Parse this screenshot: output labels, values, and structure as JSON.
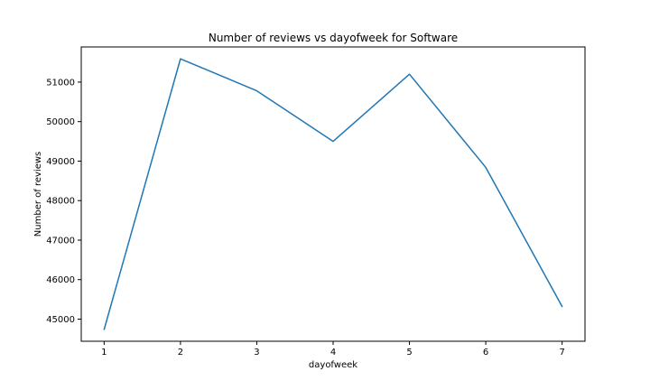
{
  "chart_data": {
    "type": "line",
    "title": "Number of reviews vs dayofweek for Software",
    "xlabel": "dayofweek",
    "ylabel": "Number of reviews",
    "x": [
      1,
      2,
      3,
      4,
      5,
      6,
      7
    ],
    "series": [
      {
        "values": [
          44740,
          51590,
          50780,
          49500,
          51200,
          48840,
          45320
        ],
        "color": "#1f77b4"
      }
    ],
    "xlim": [
      0.7,
      7.3
    ],
    "ylim": [
      44440,
      51890
    ],
    "xticks": [
      "1",
      "2",
      "3",
      "4",
      "5",
      "6",
      "7"
    ],
    "yticks": [
      "45000",
      "46000",
      "47000",
      "48000",
      "49000",
      "50000",
      "51000"
    ],
    "grid": false
  }
}
